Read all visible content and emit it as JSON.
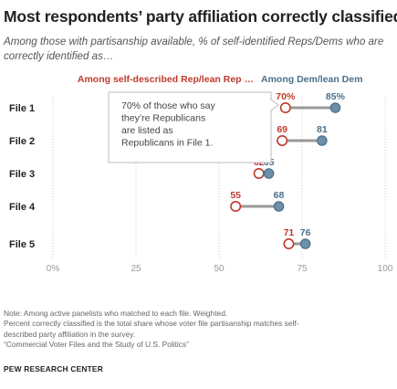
{
  "title": "Most respondents’ party affiliation correctly classified",
  "subtitle": "Among those with partisanship available, % of self-identified Reps/Dems who are correctly identified as…",
  "chart_data": {
    "type": "dot",
    "categories": [
      "File 1",
      "File 2",
      "File 3",
      "File 4",
      "File 5"
    ],
    "series": [
      {
        "name": "Among self-described Rep/lean Rep …",
        "values": [
          70,
          69,
          62,
          55,
          71
        ],
        "labels": [
          "70%",
          "69",
          "62",
          "55",
          "71"
        ],
        "color": "#c0392b"
      },
      {
        "name": "Among Dem/lean Dem",
        "values": [
          85,
          81,
          65,
          68,
          76
        ],
        "labels": [
          "85%",
          "81",
          "65",
          "68",
          "76"
        ],
        "color": "#4a6f8a"
      }
    ],
    "x_ticks": [
      0,
      25,
      50,
      75,
      100
    ],
    "x_tick_labels": [
      "0%",
      "25",
      "50",
      "75",
      "100"
    ],
    "xlim": [
      0,
      100
    ],
    "grid": true,
    "legend_position": "top",
    "annotation": "70% of those who say they’re Republicans are listed as Republicans in File 1."
  },
  "notes": [
    "Note: Among active panelists who matched to each file. Weighted.",
    "Percent correctly classified is the total share whose voter file partisanship matches self-",
    "described party affiliation in the survey.",
    "“Commercial Voter Files and the Study of U.S. Politics”"
  ],
  "source": "PEW RESEARCH CENTER"
}
